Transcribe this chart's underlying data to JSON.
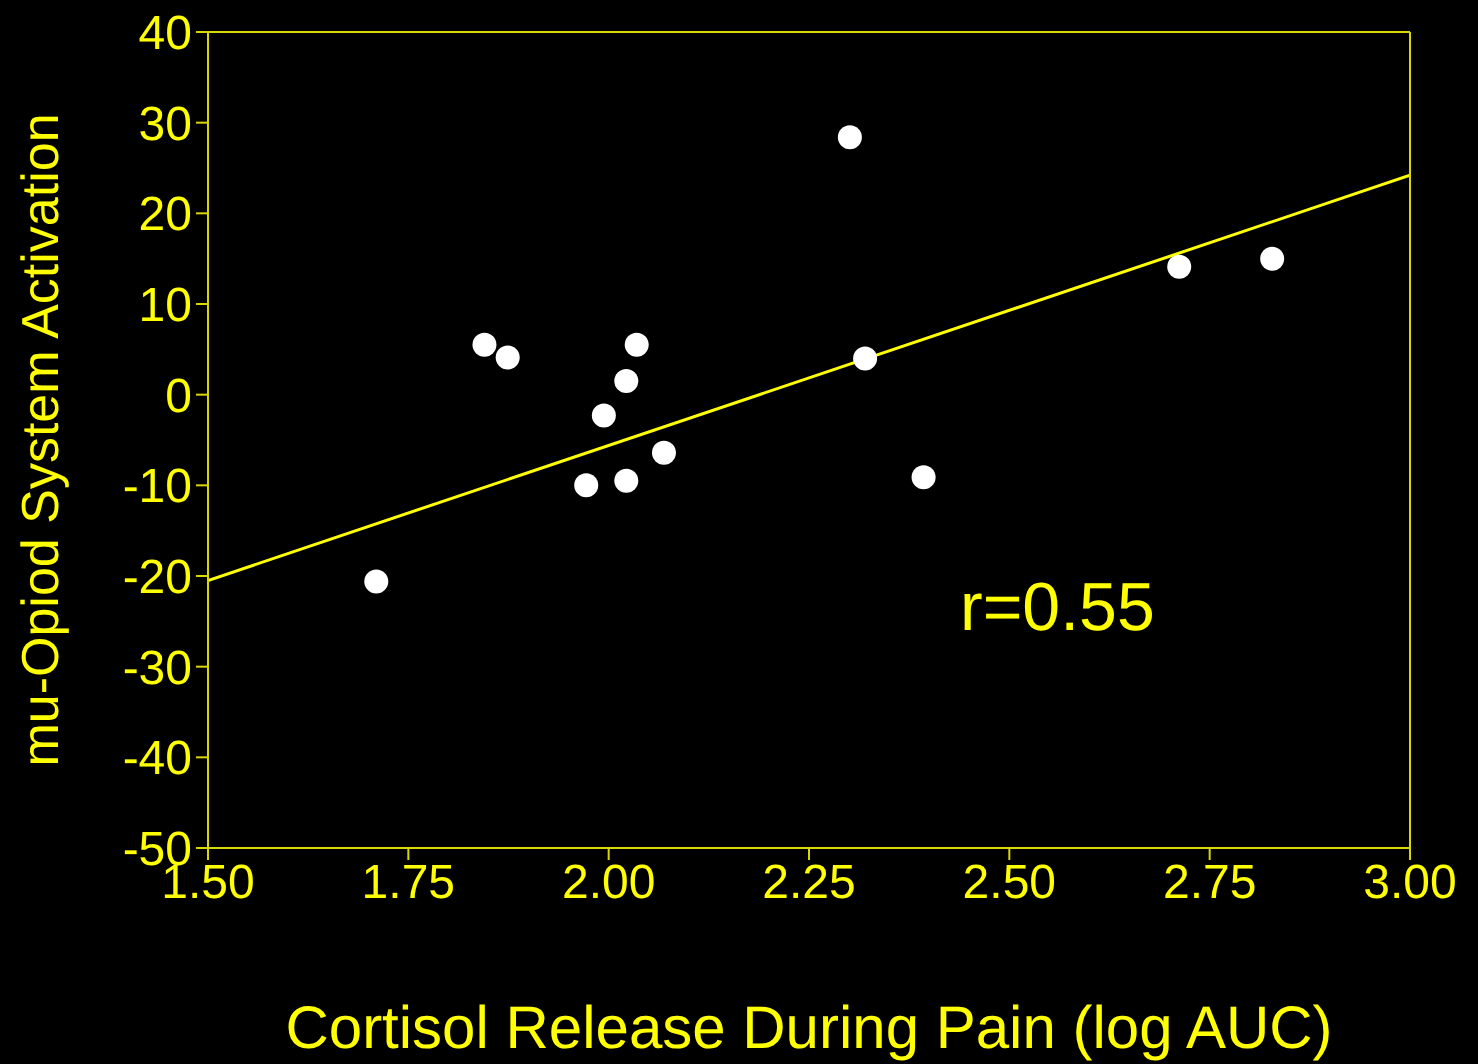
{
  "chart_data": {
    "type": "scatter",
    "xlabel": "Cortisol Release During Pain (log AUC)",
    "ylabel": "mu-Opiod System Activation",
    "annotations": [
      "r=0.55"
    ],
    "xlim": [
      1.5,
      3.0
    ],
    "xticks": [
      {
        "value": 1.5,
        "label": "1.50"
      },
      {
        "value": 1.75,
        "label": "1.75"
      },
      {
        "value": 2.0,
        "label": "2.00"
      },
      {
        "value": 2.25,
        "label": "2.25"
      },
      {
        "value": 2.5,
        "label": "2.50"
      },
      {
        "value": 2.75,
        "label": "2.75"
      },
      {
        "value": 3.0,
        "label": "3.00"
      }
    ],
    "ylim": [
      -50,
      40
    ],
    "yticks": [
      -50,
      -40,
      -30,
      -20,
      -10,
      0,
      10,
      20,
      30,
      40
    ],
    "marker": "circle",
    "grid": false,
    "legend": false,
    "series": [
      {
        "type": "scatter",
        "color": "#ffffff",
        "x": [
          1.71,
          1.845,
          1.874,
          1.972,
          1.994,
          2.022,
          2.022,
          2.035,
          2.069,
          2.301,
          2.32,
          2.393,
          2.712,
          2.828
        ],
        "values": [
          -20.6,
          5.5,
          4.1,
          -10.0,
          -2.3,
          1.5,
          -9.5,
          5.5,
          -6.4,
          28.4,
          4.0,
          -9.1,
          14.1,
          15.0
        ]
      },
      {
        "type": "line",
        "color": "#ffff00",
        "line_style": "solid",
        "marker": "none",
        "x": [
          1.5,
          3.0
        ],
        "values": [
          -20.5,
          24.2
        ]
      }
    ]
  }
}
